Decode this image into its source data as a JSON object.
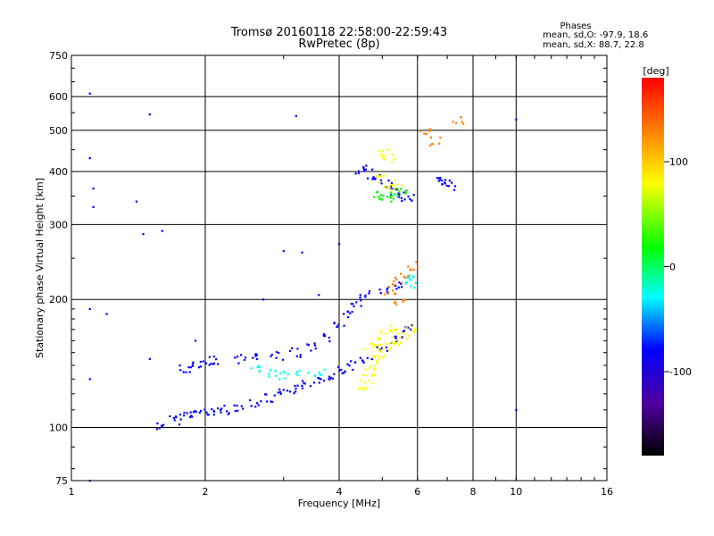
{
  "chart_data": {
    "type": "scatter",
    "title": "Tromsø 20160118 22:58:00-22:59:43",
    "subtitle": "RwPretec (8p)",
    "xlabel": "Frequency [MHz]",
    "ylabel": "Stationary phase Virtual Height [km]",
    "x_scale": "log",
    "y_scale": "log",
    "xlim": [
      1,
      16
    ],
    "ylim": [
      75,
      750
    ],
    "x_ticks": [
      "1",
      "2",
      "4",
      "6",
      "8",
      "10",
      "16"
    ],
    "x_tick_values": [
      1,
      2,
      4,
      6,
      8,
      10,
      16
    ],
    "y_ticks": [
      "75",
      "100",
      "200",
      "300",
      "400",
      "500",
      "600",
      "750"
    ],
    "y_tick_values": [
      75,
      100,
      200,
      300,
      400,
      500,
      600,
      750
    ],
    "grid": true,
    "legend": {
      "title": "Phases",
      "line1": "mean, sd,O:  -97.9, 18.6",
      "line2": "mean, sd,X:  88.7, 22.8"
    },
    "colorbar": {
      "label": "[deg]",
      "ticks": [
        "100",
        "0",
        "-100"
      ],
      "tick_values": [
        100,
        0,
        -100
      ],
      "range": [
        -180,
        180
      ]
    },
    "color_scheme": [
      "#000000",
      "#5000a0",
      "#0000ff",
      "#00ffff",
      "#00ff00",
      "#ffff00",
      "#ff8000",
      "#ff0000"
    ],
    "clusters": [
      {
        "name_hint": "E-layer blue",
        "phase": -100,
        "points": [
          [
            1.6,
            101
          ],
          [
            1.7,
            104
          ],
          [
            1.8,
            107
          ],
          [
            1.9,
            108
          ],
          [
            2.0,
            108
          ],
          [
            2.1,
            109
          ],
          [
            2.2,
            110
          ],
          [
            2.4,
            112
          ],
          [
            2.6,
            114
          ],
          [
            2.8,
            117
          ],
          [
            3.0,
            120
          ],
          [
            3.2,
            123
          ],
          [
            3.4,
            126
          ],
          [
            3.6,
            130
          ],
          [
            3.8,
            133
          ],
          [
            4.0,
            136
          ],
          [
            4.3,
            140
          ],
          [
            4.6,
            145
          ],
          [
            5.0,
            152
          ],
          [
            5.4,
            160
          ],
          [
            5.7,
            170
          ]
        ]
      },
      {
        "name_hint": "F-layer lower blue",
        "phase": -95,
        "points": [
          [
            1.8,
            138
          ],
          [
            1.9,
            140
          ],
          [
            2.0,
            142
          ],
          [
            2.1,
            144
          ],
          [
            2.4,
            145
          ],
          [
            2.6,
            146
          ],
          [
            2.9,
            147
          ],
          [
            3.2,
            150
          ],
          [
            3.5,
            155
          ],
          [
            3.8,
            163
          ],
          [
            4.0,
            175
          ],
          [
            4.2,
            185
          ],
          [
            4.4,
            195
          ],
          [
            4.6,
            205
          ],
          [
            5.0,
            210
          ],
          [
            5.5,
            215
          ]
        ]
      },
      {
        "name_hint": "upper blue F2",
        "phase": -95,
        "points": [
          [
            4.5,
            405
          ],
          [
            4.7,
            395
          ],
          [
            4.9,
            385
          ],
          [
            5.1,
            372
          ],
          [
            5.3,
            360
          ],
          [
            5.5,
            352
          ],
          [
            5.7,
            346
          ],
          [
            6.8,
            380
          ],
          [
            7.0,
            375
          ],
          [
            7.1,
            370
          ]
        ]
      },
      {
        "name_hint": "yellow X",
        "phase": 95,
        "points": [
          [
            4.5,
            125
          ],
          [
            4.6,
            130
          ],
          [
            4.7,
            135
          ],
          [
            4.8,
            140
          ],
          [
            4.9,
            145
          ],
          [
            5.0,
            150
          ],
          [
            5.2,
            155
          ],
          [
            5.4,
            160
          ],
          [
            5.6,
            165
          ],
          [
            5.8,
            170
          ],
          [
            4.7,
            155
          ],
          [
            4.9,
            160
          ],
          [
            5.1,
            165
          ],
          [
            5.3,
            170
          ],
          [
            5.0,
            385
          ],
          [
            5.2,
            375
          ],
          [
            5.4,
            368
          ],
          [
            5.0,
            440
          ],
          [
            5.2,
            430
          ]
        ]
      },
      {
        "name_hint": "orange X",
        "phase": 140,
        "points": [
          [
            5.2,
            210
          ],
          [
            5.4,
            220
          ],
          [
            5.6,
            230
          ],
          [
            5.9,
            240
          ],
          [
            5.5,
            195
          ],
          [
            6.2,
            500
          ],
          [
            6.6,
            470
          ],
          [
            7.4,
            530
          ]
        ]
      },
      {
        "name_hint": "green",
        "phase": 40,
        "points": [
          [
            4.9,
            350
          ],
          [
            5.1,
            345
          ],
          [
            5.3,
            352
          ],
          [
            5.5,
            360
          ]
        ]
      },
      {
        "name_hint": "cyan",
        "phase": -30,
        "points": [
          [
            2.6,
            137
          ],
          [
            2.8,
            134
          ],
          [
            3.0,
            132
          ],
          [
            3.3,
            133
          ],
          [
            3.6,
            135
          ],
          [
            5.7,
            225
          ],
          [
            5.8,
            215
          ]
        ]
      },
      {
        "name_hint": "scatter blue",
        "phase": -100,
        "points": [
          [
            1.1,
            610
          ],
          [
            1.1,
            430
          ],
          [
            1.12,
            365
          ],
          [
            1.12,
            330
          ],
          [
            1.5,
            545
          ],
          [
            3.2,
            540
          ],
          [
            1.4,
            340
          ],
          [
            1.45,
            285
          ],
          [
            1.6,
            290
          ],
          [
            3.0,
            260
          ],
          [
            3.3,
            258
          ],
          [
            4.0,
            270
          ],
          [
            10,
            530
          ],
          [
            10,
            110
          ],
          [
            1.1,
            130
          ],
          [
            1.2,
            185
          ],
          [
            1.1,
            190
          ],
          [
            3.6,
            205
          ],
          [
            2.7,
            200
          ],
          [
            1.5,
            145
          ],
          [
            1.9,
            160
          ],
          [
            1.1,
            75
          ]
        ]
      }
    ]
  }
}
